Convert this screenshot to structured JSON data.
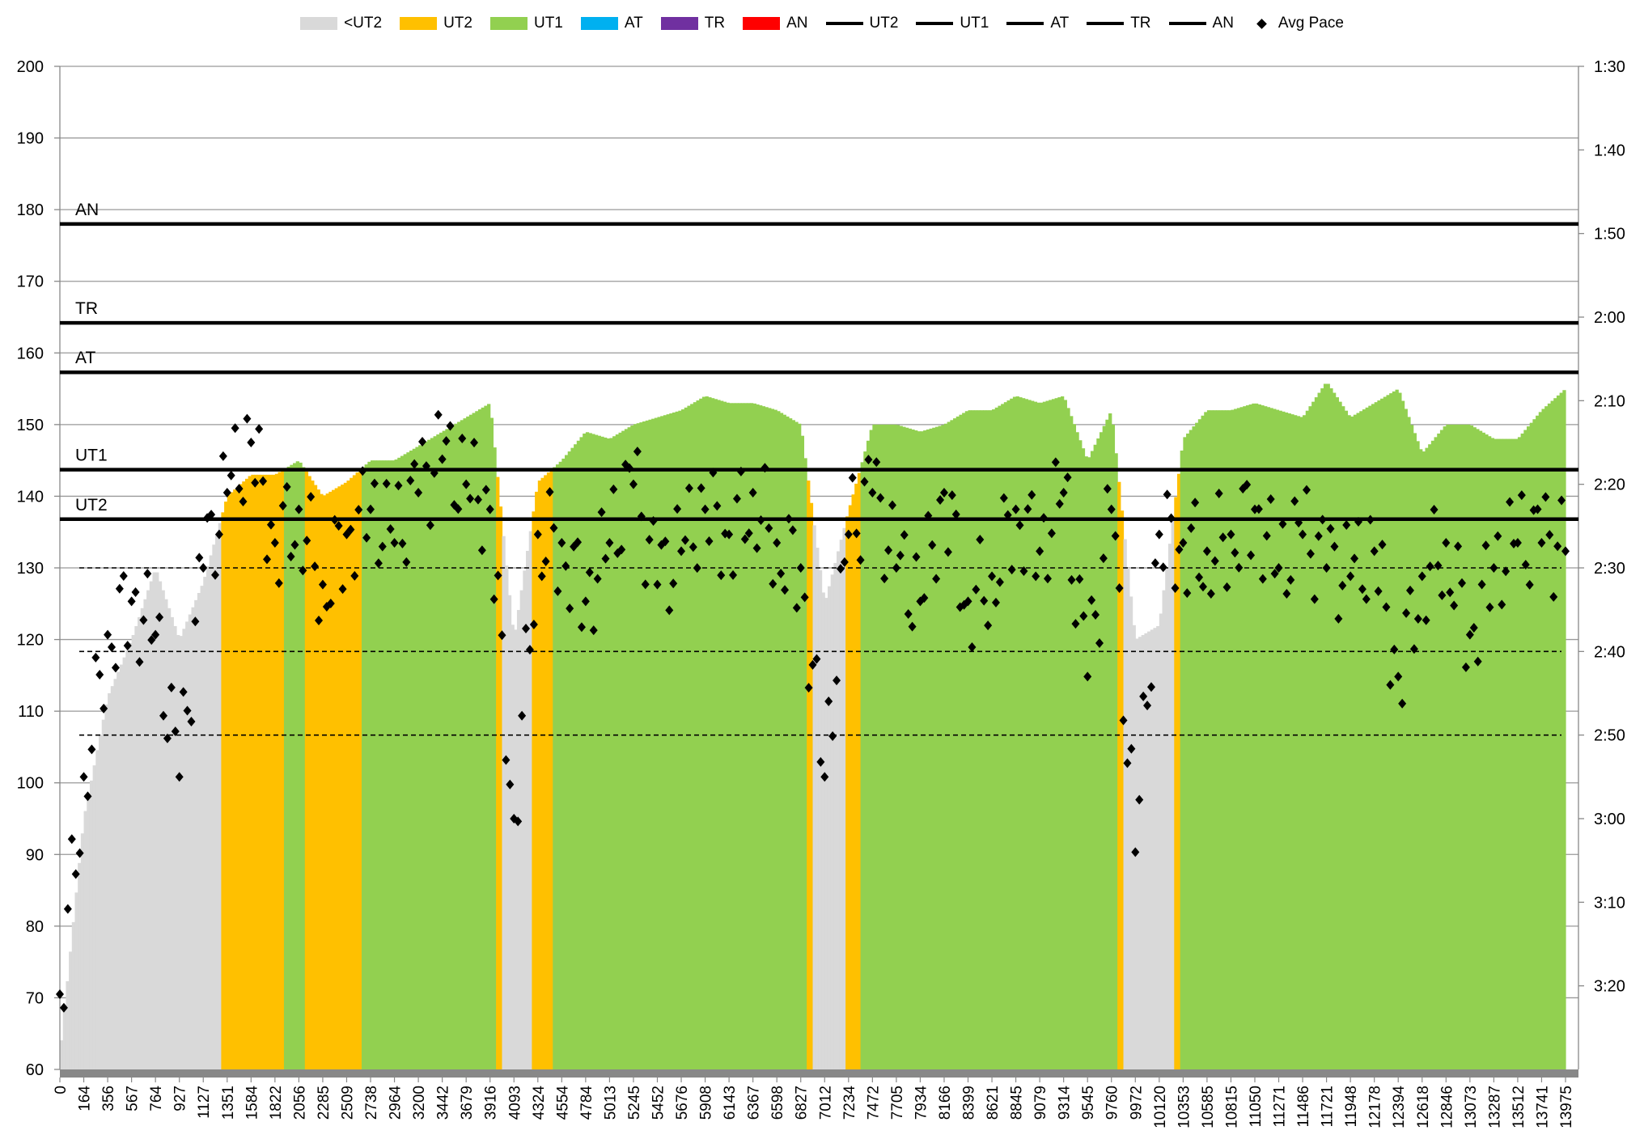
{
  "chart_data": {
    "type": "area+scatter",
    "title": "",
    "xlabel": "",
    "ylabel": "",
    "y_left_range": [
      60,
      200
    ],
    "y_left_ticks": [
      60,
      70,
      80,
      90,
      100,
      110,
      120,
      130,
      140,
      150,
      160,
      170,
      180,
      190,
      200
    ],
    "y_right_range": [
      "1:30",
      "3:30"
    ],
    "y_right_ticks": [
      "1:30",
      "1:40",
      "1:50",
      "2:00",
      "2:10",
      "2:20",
      "2:30",
      "2:40",
      "2:50",
      "3:00",
      "3:10",
      "3:20"
    ],
    "grid": true,
    "legend_position": "top",
    "categories": [
      0,
      164,
      356,
      567,
      764,
      927,
      1127,
      1351,
      1584,
      1822,
      2056,
      2285,
      2509,
      2738,
      2964,
      3200,
      3442,
      3679,
      3916,
      4093,
      4324,
      4554,
      4784,
      5013,
      5245,
      5452,
      5676,
      5908,
      6143,
      6367,
      6598,
      6827,
      7012,
      7234,
      7472,
      7705,
      7934,
      8166,
      8399,
      8621,
      8845,
      9079,
      9314,
      9545,
      9760,
      9972,
      10120,
      10353,
      10585,
      10815,
      11050,
      11271,
      11486,
      11721,
      11948,
      12178,
      12394,
      12618,
      12846,
      13073,
      13287,
      13512,
      13741,
      13975
    ],
    "heart_rate": [
      62,
      95,
      112,
      120,
      130,
      120,
      128,
      140,
      143,
      143,
      145,
      140,
      142,
      145,
      145,
      147,
      149,
      151,
      153,
      120,
      142,
      145,
      149,
      148,
      150,
      151,
      152,
      154,
      153,
      153,
      152,
      150,
      125,
      138,
      150,
      150,
      149,
      150,
      152,
      152,
      154,
      153,
      154,
      145,
      152,
      120,
      122,
      148,
      152,
      152,
      153,
      152,
      151,
      156,
      151,
      153,
      155,
      146,
      150,
      150,
      148,
      148,
      152,
      155
    ],
    "avg_pace": [
      "3:21",
      "2:55",
      "2:38",
      "2:34",
      "2:38",
      "2:55",
      "2:30",
      "2:21",
      "2:15",
      "2:27",
      "2:23",
      "2:32",
      "2:26",
      "2:23",
      "2:27",
      "2:21",
      "2:17",
      "2:20",
      "2:23",
      "3:00",
      "2:26",
      "2:27",
      "2:34",
      "2:27",
      "2:20",
      "2:32",
      "2:28",
      "2:23",
      "2:26",
      "2:21",
      "2:27",
      "2:30",
      "2:55",
      "2:26",
      "2:21",
      "2:30",
      "2:34",
      "2:21",
      "2:34",
      "2:31",
      "2:23",
      "2:28",
      "2:21",
      "2:43",
      "2:23",
      "3:04",
      "2:26",
      "2:27",
      "2:28",
      "2:26",
      "2:23",
      "2:30",
      "2:26",
      "2:30",
      "2:31",
      "2:28",
      "2:43",
      "2:31",
      "2:27",
      "2:38",
      "2:30",
      "2:27",
      "2:27",
      "2:28"
    ],
    "zones": [
      {
        "name": "<UT2",
        "color": "#D9D9D9"
      },
      {
        "name": "UT2",
        "color": "#FFC000",
        "threshold": 136.8
      },
      {
        "name": "UT1",
        "color": "#92D050",
        "threshold": 143.7
      },
      {
        "name": "AT",
        "color": "#00B0F0",
        "threshold": 157.3
      },
      {
        "name": "TR",
        "color": "#7030A0",
        "threshold": 164.2
      },
      {
        "name": "AN",
        "color": "#FF0000",
        "threshold": 178.0
      }
    ],
    "threshold_lines": [
      {
        "name": "UT2",
        "value": 136.8
      },
      {
        "name": "UT1",
        "value": 143.7
      },
      {
        "name": "AT",
        "value": 157.3
      },
      {
        "name": "TR",
        "value": 164.2
      },
      {
        "name": "AN",
        "value": 178.0
      }
    ],
    "pace_reference_lines": [
      "2:30",
      "2:40",
      "2:50"
    ],
    "scatter_series_name": "Avg Pace"
  }
}
